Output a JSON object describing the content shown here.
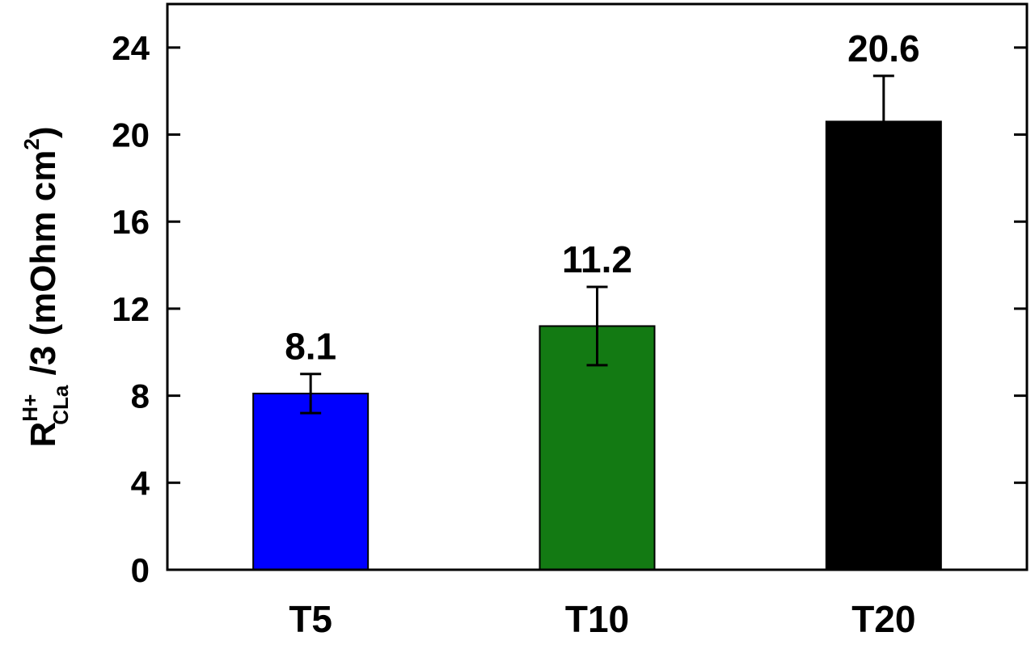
{
  "chart_data": {
    "type": "bar",
    "ylabel": {
      "base": "R",
      "sup": "H+",
      "sub": "CLa",
      "text": " /3 (mOhm cm",
      "unit_sup": "2",
      "close": ")"
    },
    "categories": [
      "T5",
      "T10",
      "T20"
    ],
    "values": [
      8.1,
      11.2,
      20.6
    ],
    "value_labels": [
      "8.1",
      "11.2",
      "20.6"
    ],
    "errors": [
      0.9,
      1.8,
      2.1
    ],
    "colors": [
      "#0000ff",
      "#137a13",
      "#000000"
    ],
    "ylim": [
      0,
      26
    ],
    "yticks": [
      0,
      4,
      8,
      12,
      16,
      20,
      24
    ]
  }
}
